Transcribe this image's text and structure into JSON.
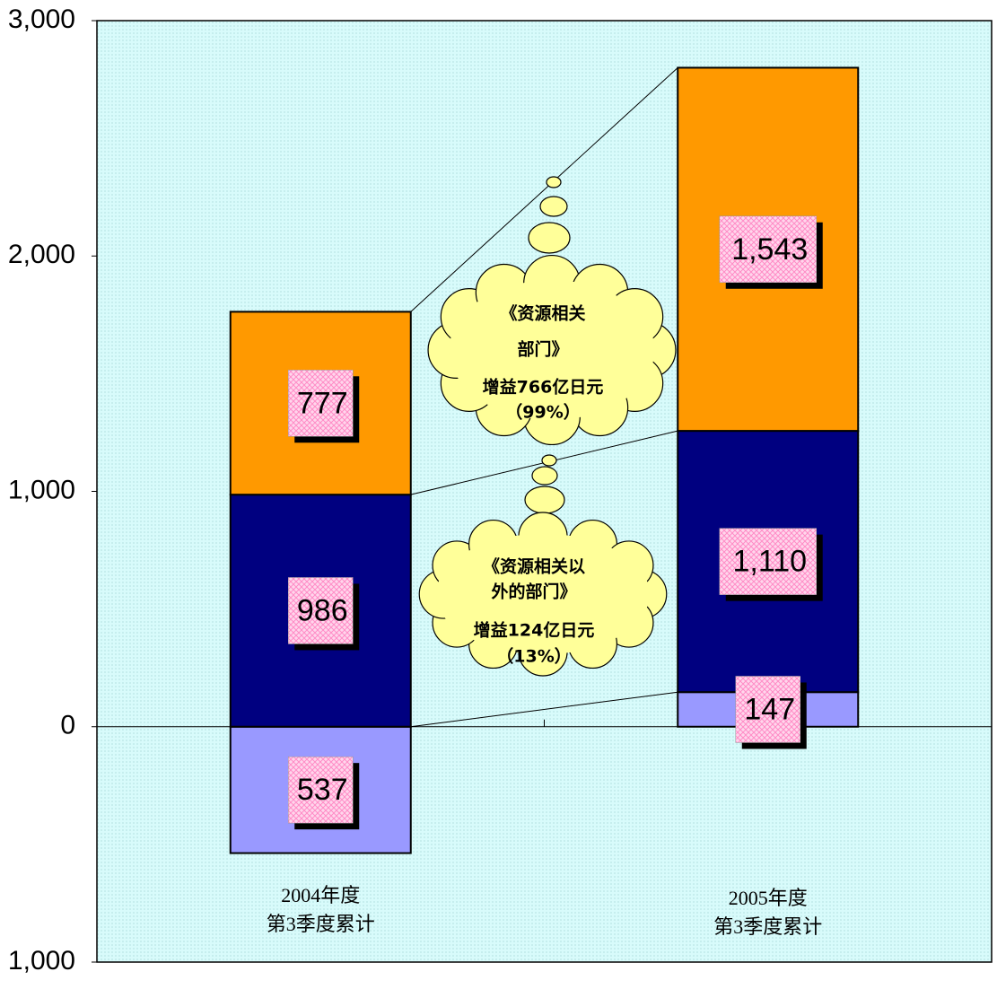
{
  "chart_data": {
    "type": "stacked-bar",
    "categories": [
      [
        "2004年度",
        "第3季度累计"
      ],
      [
        "2005年度",
        "第3季度累计"
      ]
    ],
    "series": [
      {
        "color": "#9999ff",
        "values": [
          -537,
          147
        ],
        "value_labels": [
          "537",
          "147"
        ]
      },
      {
        "color": "#000080",
        "values": [
          986,
          1110
        ],
        "value_labels": [
          "986",
          "1,110"
        ]
      },
      {
        "color": "#ff9900",
        "values": [
          777,
          1543
        ],
        "value_labels": [
          "777",
          "1,543"
        ]
      }
    ],
    "ylim": [
      -1000,
      3000
    ],
    "yticks": [
      {
        "value": -1000,
        "label": "1,000"
      },
      0,
      {
        "value": 1000,
        "label": "1,000"
      },
      {
        "value": 2000,
        "label": "2,000"
      },
      {
        "value": 3000,
        "label": "3,000"
      }
    ],
    "annotations": [
      [
        "《资源相关",
        "部门》",
        "增益766亿日元",
        "（99%）"
      ],
      [
        "《资源相关以",
        "外的部门》",
        "增益124亿日元",
        "（13%）"
      ]
    ]
  }
}
